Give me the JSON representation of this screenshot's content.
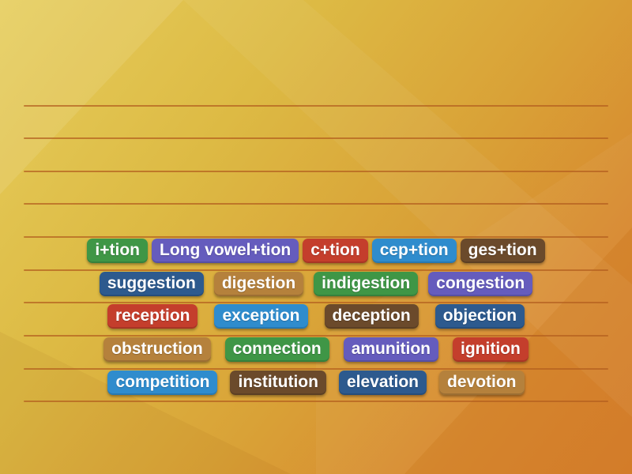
{
  "background": {
    "base_top_left_color": "#e6cd5c",
    "base_bottom_right_color": "#d77f2b",
    "ruled_line_color": "#b35e1e"
  },
  "palette": {
    "green": "#3f9646",
    "purple": "#655cbd",
    "red": "#c43e2c",
    "blue": "#2f8ccd",
    "brown": "#6b4a2b",
    "navy": "#2d5a8e",
    "tan": "#b5813c"
  },
  "board": {
    "rows": [
      {
        "tiles": [
          {
            "label": "i+tion",
            "color": "green"
          },
          {
            "label": "Long vowel+tion",
            "color": "purple"
          },
          {
            "label": "c+tion",
            "color": "red"
          },
          {
            "label": "cep+tion",
            "color": "blue"
          },
          {
            "label": "ges+tion",
            "color": "brown"
          }
        ]
      },
      {
        "tiles": [
          {
            "label": "suggestion",
            "color": "navy"
          },
          {
            "label": "digestion",
            "color": "tan"
          },
          {
            "label": "indigestion",
            "color": "green"
          },
          {
            "label": "congestion",
            "color": "purple"
          }
        ]
      },
      {
        "tiles": [
          {
            "label": "reception",
            "color": "red"
          },
          {
            "label": "exception",
            "color": "blue"
          },
          {
            "label": "deception",
            "color": "brown"
          },
          {
            "label": "objection",
            "color": "navy"
          }
        ]
      },
      {
        "tiles": [
          {
            "label": "obstruction",
            "color": "tan"
          },
          {
            "label": "connection",
            "color": "green"
          },
          {
            "label": "amunition",
            "color": "purple"
          },
          {
            "label": "ignition",
            "color": "red"
          }
        ]
      },
      {
        "tiles": [
          {
            "label": "competition",
            "color": "blue"
          },
          {
            "label": "institution",
            "color": "brown"
          },
          {
            "label": "elevation",
            "color": "navy"
          },
          {
            "label": "devotion",
            "color": "tan"
          }
        ]
      }
    ]
  }
}
